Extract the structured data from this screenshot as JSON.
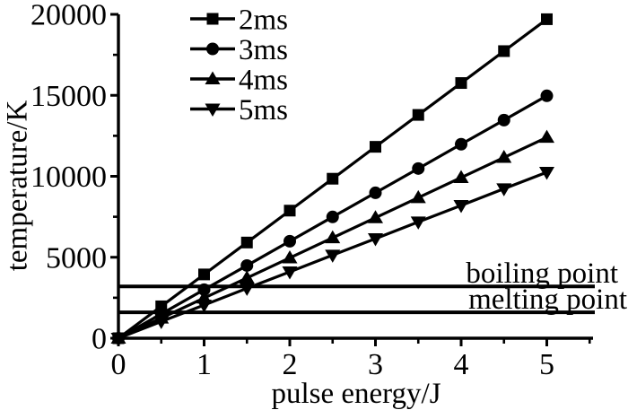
{
  "figure": {
    "background_color": "#ffffff",
    "ink_color": "#000000"
  },
  "chart_data": {
    "type": "line",
    "title": "",
    "xlabel": "pulse energy/J",
    "ylabel": "temperature/K",
    "xlim": [
      0,
      5.55
    ],
    "ylim": [
      0,
      20000
    ],
    "grid": false,
    "legend_position": "top-left-inside",
    "x_major_ticks": [
      0,
      1,
      2,
      3,
      4,
      5
    ],
    "x_minor_ticks": [
      0.5,
      1.5,
      2.5,
      3.5,
      4.5,
      5.5
    ],
    "y_major_ticks": [
      0,
      5000,
      10000,
      15000,
      20000
    ],
    "y_minor_ticks": [
      2500,
      7500,
      12500,
      17500
    ],
    "x": [
      0,
      0.5,
      1,
      1.5,
      2,
      2.5,
      3,
      3.5,
      4,
      4.5,
      5
    ],
    "series": [
      {
        "name": "2ms",
        "marker": "square",
        "values": [
          0,
          1970,
          3940,
          5910,
          7880,
          9850,
          11820,
          13790,
          15760,
          17730,
          19700
        ]
      },
      {
        "name": "3ms",
        "marker": "circle",
        "values": [
          0,
          1500,
          3000,
          4490,
          5990,
          7490,
          8980,
          10480,
          11980,
          13470,
          14970
        ]
      },
      {
        "name": "4ms",
        "marker": "triangle-up",
        "values": [
          0,
          1240,
          2480,
          3720,
          4960,
          6200,
          7440,
          8680,
          9920,
          11160,
          12400
        ]
      },
      {
        "name": "5ms",
        "marker": "triangle-down",
        "values": [
          0,
          1030,
          2050,
          3080,
          4100,
          5130,
          6150,
          7180,
          8200,
          9230,
          10250
        ]
      }
    ],
    "reference_lines": [
      {
        "label": "boiling point",
        "value": 3200
      },
      {
        "label": "melting point",
        "value": 1600
      }
    ]
  }
}
